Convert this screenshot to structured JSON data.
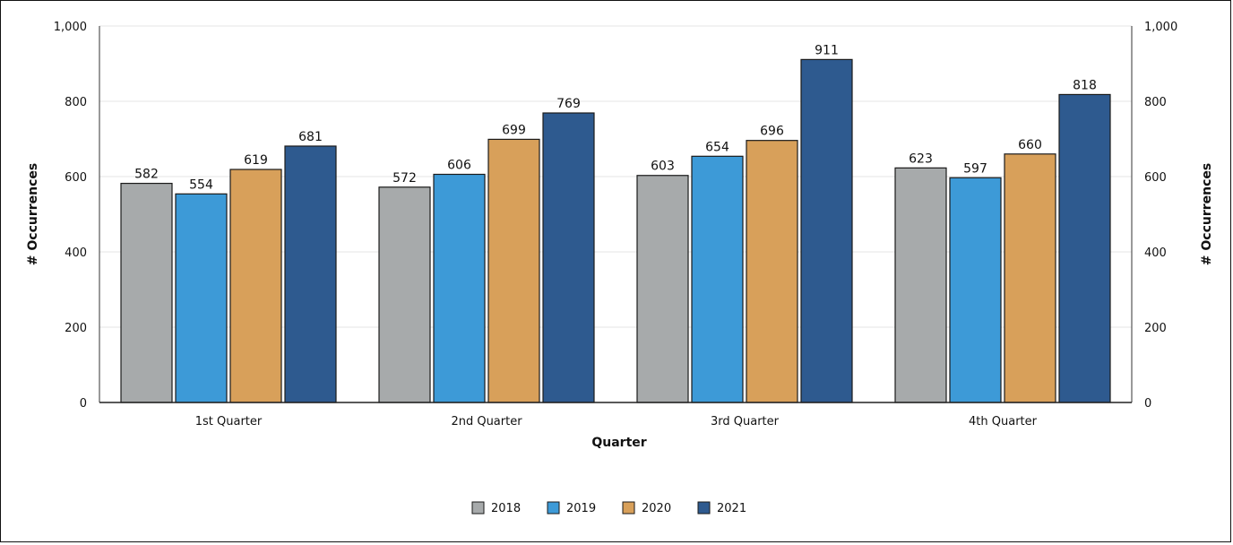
{
  "chart_data": {
    "type": "bar",
    "title": "",
    "xlabel": "Quarter",
    "ylabel": "# Occurrences",
    "ylabel_right": "# Occurrences",
    "ylim": [
      0,
      1000
    ],
    "yticks": [
      0,
      200,
      400,
      600,
      800,
      1000
    ],
    "ytick_labels": [
      "0",
      "200",
      "400",
      "600",
      "800",
      "1,000"
    ],
    "categories": [
      "1st Quarter",
      "2nd Quarter",
      "3rd Quarter",
      "4th Quarter"
    ],
    "series": [
      {
        "name": "2018",
        "color": "#a7aaab",
        "values": [
          582,
          572,
          603,
          623
        ]
      },
      {
        "name": "2019",
        "color": "#3d9ad7",
        "values": [
          554,
          606,
          654,
          597
        ]
      },
      {
        "name": "2020",
        "color": "#d8a05a",
        "values": [
          619,
          699,
          696,
          660
        ]
      },
      {
        "name": "2021",
        "color": "#2e5a8f",
        "values": [
          681,
          769,
          911,
          818
        ]
      }
    ],
    "grid": true,
    "legend_position": "bottom-center",
    "data_labels": true
  }
}
